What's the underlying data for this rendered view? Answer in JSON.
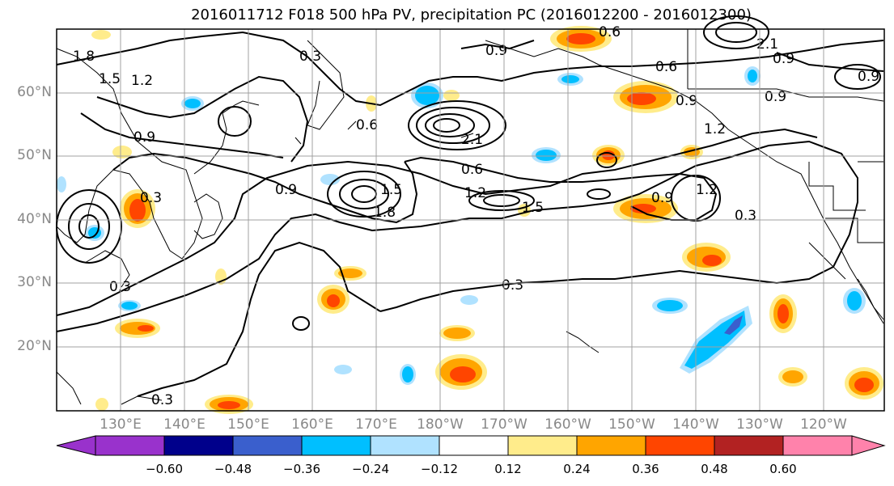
{
  "title": "2016011712 F018 500 hPa PV, precipitation PC (2016012200 - 2016012300)",
  "lat_labels": [
    "60°N",
    "50°N",
    "40°N",
    "30°N",
    "20°N"
  ],
  "lon_labels": [
    "130°E",
    "140°E",
    "150°E",
    "160°E",
    "170°E",
    "180°W",
    "170°W",
    "160°W",
    "150°W",
    "140°W",
    "130°W",
    "120°W"
  ],
  "contour_labels": [
    "0.3",
    "0.6",
    "0.9",
    "1.2",
    "1.5",
    "1.8",
    "2.1"
  ],
  "colorbar": {
    "ticks": [
      "−0.60",
      "−0.48",
      "−0.36",
      "−0.24",
      "−0.12",
      "0.12",
      "0.24",
      "0.36",
      "0.48",
      "0.60"
    ],
    "colors": [
      "#9932CC",
      "#00008B",
      "#3A5FCD",
      "#00BFFF",
      "#B0E2FF",
      "#FFFFFF",
      "#FFEC8B",
      "#FFA500",
      "#FF4500",
      "#B22222",
      "#FF82AB"
    ]
  },
  "colors": {
    "coast": "#000000",
    "contour": "#000000",
    "grid": "#A0A0A0",
    "tick_label": "#888888"
  }
}
